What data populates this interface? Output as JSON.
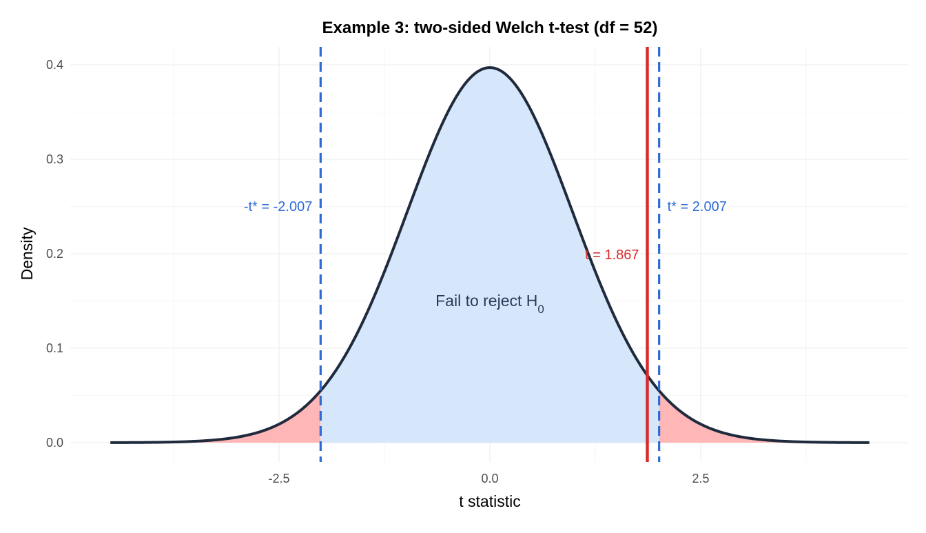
{
  "chart_data": {
    "type": "area",
    "title": "Example 3: two-sided Welch t-test (df = 52)",
    "xlabel": "t statistic",
    "ylabel": "Density",
    "df": 52,
    "xlim": [
      -4.5,
      4.5
    ],
    "ylim": [
      0,
      0.4
    ],
    "x_ticks": [
      -2.5,
      0.0,
      2.5
    ],
    "x_tick_labels": [
      "-2.5",
      "0.0",
      "2.5"
    ],
    "y_ticks": [
      0.0,
      0.1,
      0.2,
      0.3,
      0.4
    ],
    "y_tick_labels": [
      "0.0",
      "0.1",
      "0.2",
      "0.3",
      "0.4"
    ],
    "grid": true,
    "critical_value": 2.007,
    "observed_t": 1.867,
    "annotations": {
      "lower_critical": "-t* = -2.007",
      "upper_critical": "t* = 2.007",
      "observed": "t = 1.867",
      "region_label": "Fail to reject H",
      "region_label_subscript": "0"
    },
    "colors": {
      "curve": "#1f2a3d",
      "acceptance_fill": "#d6e7fc",
      "rejection_fill": "#ffb6b6",
      "critical_line": "#2d6ad6",
      "observed_line": "#d92b2b",
      "region_text": "#2a3a56"
    }
  }
}
